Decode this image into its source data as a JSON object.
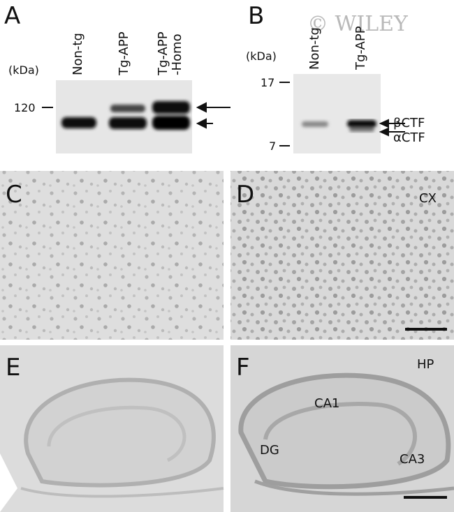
{
  "watermark": "© WILEY",
  "panels": {
    "a": {
      "letter": "A",
      "unit": "(kDa)",
      "lanes": [
        [
          "Non-tg"
        ],
        [
          "Tg-APP"
        ],
        [
          "Tg-APP",
          "-Homo"
        ]
      ],
      "markers": [
        "120"
      ]
    },
    "b": {
      "letter": "B",
      "unit": "(kDa)",
      "lanes": [
        [
          "Non-tg"
        ],
        [
          "Tg-APP"
        ]
      ],
      "markers": [
        "17",
        "7"
      ],
      "bands": [
        "βCTF",
        "αCTF"
      ]
    },
    "c": {
      "letter": "C"
    },
    "d": {
      "letter": "D",
      "region": "CX"
    },
    "e": {
      "letter": "E"
    },
    "f": {
      "letter": "F",
      "region": "HP",
      "areas": [
        "CA1",
        "DG",
        "CA3"
      ]
    }
  }
}
